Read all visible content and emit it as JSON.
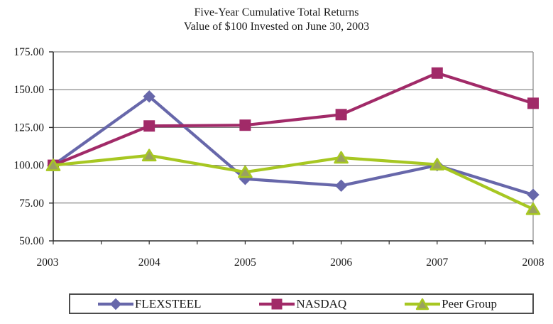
{
  "title": {
    "line1": "Five-Year Cumulative Total Returns",
    "line2": "Value of $100 Invested on June 30, 2003"
  },
  "chart_data": {
    "type": "line",
    "categories": [
      "2003",
      "2004",
      "2005",
      "2006",
      "2007",
      "2008"
    ],
    "series": [
      {
        "name": "FLEXSTEEL",
        "marker": "diamond",
        "color": "#6767AA",
        "marker_fill": "#6767AA",
        "values": [
          100.0,
          145.5,
          91.0,
          86.5,
          100.0,
          80.5
        ]
      },
      {
        "name": "NASDAQ",
        "marker": "square",
        "color": "#A12A68",
        "marker_fill": "#A12A68",
        "values": [
          100.0,
          126.0,
          126.5,
          133.5,
          161.0,
          141.0
        ]
      },
      {
        "name": "Peer Group",
        "marker": "triangle",
        "color": "#A7C722",
        "marker_fill": "#9AA062",
        "values": [
          100.0,
          106.5,
          95.5,
          105.0,
          100.5,
          71.0
        ]
      }
    ],
    "ylim": [
      50,
      175
    ],
    "ytick_step": 25,
    "ytick_labels": [
      "50.00",
      "75.00",
      "100.00",
      "125.00",
      "150.00",
      "175.00"
    ],
    "xlabel": "",
    "ylabel": "",
    "grid": true,
    "legend_position": "bottom",
    "axis_color": "#2e2e2e",
    "grid_color": "#6e6e6e",
    "label_color": "#1a1a1a"
  }
}
